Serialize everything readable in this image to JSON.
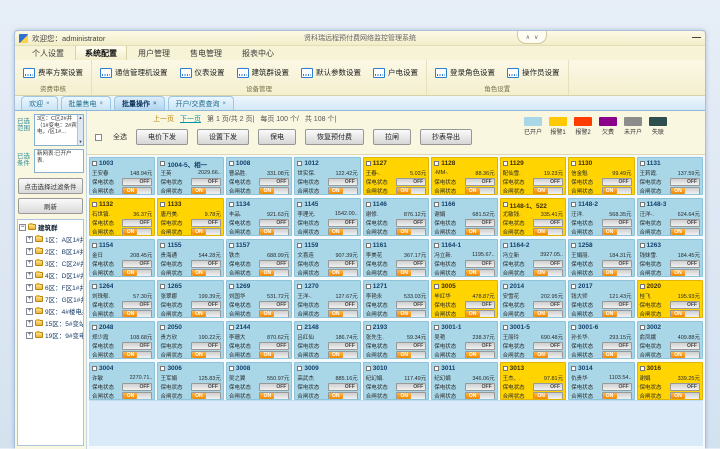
{
  "window": {
    "welcome": "欢迎您：administrator",
    "title": "贤科瑞远程预付费网络监控管理系统",
    "minimize_glyph": "—",
    "collapse_up": "∧",
    "collapse_down": "∨"
  },
  "ribbon_tabs": [
    {
      "label": "个人设置"
    },
    {
      "label": "系统配置",
      "state": "active"
    },
    {
      "label": "用户管理"
    },
    {
      "label": "售电管理"
    },
    {
      "label": "报表中心"
    }
  ],
  "ribbon": {
    "group1": {
      "label": "资费审核",
      "buttons": [
        {
          "label": "费率方案设置"
        }
      ]
    },
    "group2": {
      "label": "设备管理",
      "buttons": [
        {
          "label": "通信管理机设置"
        },
        {
          "label": "仪表设置"
        },
        {
          "label": "建筑群设置"
        },
        {
          "label": "默认参数设置"
        },
        {
          "label": "户电设置"
        }
      ]
    },
    "group3": {
      "label": "角色设置",
      "buttons": [
        {
          "label": "登录角色设置"
        },
        {
          "label": "操作员设置"
        }
      ]
    }
  },
  "doc_tabs": [
    {
      "label": "欢迎"
    },
    {
      "label": "批量售电"
    },
    {
      "label": "批量操作",
      "state": "active"
    },
    {
      "label": "开户/交费查询"
    }
  ],
  "sidebar": {
    "range_label": "已选范围",
    "range_text": "3区：C区2#井（1#变电：2#宾电，/区1#…",
    "cond_label": "已选条件",
    "cond_text": "新网表:已开户表.",
    "filter_button": "点击选择过滤条件",
    "refresh_button": "刷新",
    "tree_root": "建筑群",
    "tree": [
      {
        "label": "1区：A区1#井"
      },
      {
        "label": "2区：B区1#井（宾"
      },
      {
        "label": "3区：C区2#井（1#"
      },
      {
        "label": "4区：D区1#井（4#"
      },
      {
        "label": "6区：F区1#井（3#"
      },
      {
        "label": "7区：G区1#井"
      },
      {
        "label": "9区：4#楼电井（"
      },
      {
        "label": "15区：5#变站（3#"
      },
      {
        "label": "19区：9#变电站（"
      }
    ]
  },
  "toolbar": {
    "select_all": "全选",
    "pagination": {
      "prev": "上一页",
      "next": "下一页",
      "page_info": "第 1 页/共 2 页|",
      "per_page": "每页 100 个/",
      "total": "共 108 个|"
    },
    "buttons": [
      {
        "label": "电价下发"
      },
      {
        "label": "设置下发"
      },
      {
        "label": "保电"
      },
      {
        "label": "恢复预付费"
      },
      {
        "label": "拉闸"
      },
      {
        "label": "抄表导出"
      }
    ]
  },
  "legend": [
    {
      "label": "已开户",
      "color": "#a9d7e8"
    },
    {
      "label": "报警1",
      "color": "#ffc800"
    },
    {
      "label": "报警2",
      "color": "#ff3c00"
    },
    {
      "label": "欠费",
      "color": "#8b008b"
    },
    {
      "label": "未开户",
      "color": "#8c8c8c"
    },
    {
      "label": "失联",
      "color": "#2f4f4f"
    }
  ],
  "labels": {
    "baodian": "保电状态",
    "hezha": "合闸状态",
    "off": "OFF",
    "on": "ON"
  },
  "grid": {
    "cards": [
      {
        "room": "1003",
        "name": "王安春",
        "amount": "148.94元",
        "status": "blue"
      },
      {
        "room": "1004-5、相一",
        "name": "王英",
        "amount": "2029.66..",
        "status": "blue"
      },
      {
        "room": "1008",
        "name": "曹品胜.",
        "amount": "331.08元",
        "status": "blue"
      },
      {
        "room": "1012",
        "name": "世实保.",
        "amount": "122.42元",
        "status": "blue"
      },
      {
        "room": "1127",
        "name": "王春-.",
        "amount": "5.03元",
        "status": "yellow"
      },
      {
        "room": "1128",
        "name": "-MM-.",
        "amount": "88.36元",
        "status": "yellow"
      },
      {
        "room": "1129",
        "name": "配仙雪.",
        "amount": "19.23元",
        "status": "yellow"
      },
      {
        "room": "1130",
        "name": "信金魁",
        "amount": "99.49元",
        "status": "yellow"
      },
      {
        "room": "1131",
        "name": "王莉霞.",
        "amount": "137.59元",
        "status": "blue"
      },
      {
        "room": "1132",
        "name": "石世镇.",
        "amount": "36.37元",
        "status": "yellow"
      },
      {
        "room": "1133",
        "name": "唐丹美.",
        "amount": "9.78元",
        "status": "yellow"
      },
      {
        "room": "1134",
        "name": "丰品.",
        "amount": "921.63元",
        "status": "blue"
      },
      {
        "room": "1145",
        "name": "李理光.",
        "amount": "1542.00..",
        "status": "blue"
      },
      {
        "room": "1146",
        "name": "谢修.",
        "amount": "876.12元",
        "status": "blue"
      },
      {
        "room": "1166",
        "name": "谢娟",
        "amount": "681.52元",
        "status": "blue"
      },
      {
        "room": "1148-1、522",
        "name": "尤敏钱.",
        "amount": "335.41元",
        "status": "yellow"
      },
      {
        "room": "1148-2",
        "name": "汪洋.",
        "amount": "568.35元",
        "status": "blue"
      },
      {
        "room": "1148-3",
        "name": "汪洋-.",
        "amount": "624.64元",
        "status": "blue"
      },
      {
        "room": "1154",
        "name": "金日",
        "amount": "208.45元",
        "status": "blue"
      },
      {
        "room": "1155",
        "name": "贵海通",
        "amount": "544.28元",
        "status": "blue"
      },
      {
        "room": "1157",
        "name": "铁杰",
        "amount": "688.99元",
        "status": "blue"
      },
      {
        "room": "1159",
        "name": "文喜连",
        "amount": "907.39元",
        "status": "blue"
      },
      {
        "room": "1161",
        "name": "李美花",
        "amount": "367.17元",
        "status": "blue"
      },
      {
        "room": "1164-1",
        "name": "冯立新.",
        "amount": "1195.67..",
        "status": "blue"
      },
      {
        "room": "1164-2",
        "name": "冯立新",
        "amount": "3927.05..",
        "status": "blue"
      },
      {
        "room": "1258",
        "name": "王娟丽.",
        "amount": "184.31元",
        "status": "blue"
      },
      {
        "room": "1263",
        "name": "钱妹雪.",
        "amount": "184.45元",
        "status": "blue"
      },
      {
        "room": "1264",
        "name": "刘珠郁.",
        "amount": "57.30元",
        "status": "blue"
      },
      {
        "room": "1265",
        "name": "张翠娜",
        "amount": "199.39元",
        "status": "blue"
      },
      {
        "room": "1269",
        "name": "刘国华",
        "amount": "531.72元",
        "status": "blue"
      },
      {
        "room": "1270",
        "name": "王洋-.",
        "amount": "127.67元",
        "status": "blue"
      },
      {
        "room": "1271",
        "name": "李艳永",
        "amount": "533.03元",
        "status": "blue"
      },
      {
        "room": "3005",
        "name": "毕红华",
        "amount": "478.87元",
        "status": "yellow"
      },
      {
        "room": "2014",
        "name": "安雪花",
        "amount": "202.95元",
        "status": "blue"
      },
      {
        "room": "2017",
        "name": "钱大师",
        "amount": "121.43元",
        "status": "blue"
      },
      {
        "room": "2020",
        "name": "桂飞",
        "amount": "195.93元",
        "status": "yellow"
      },
      {
        "room": "2048",
        "name": "郑少霞",
        "amount": "108.68元",
        "status": "blue"
      },
      {
        "room": "2050",
        "name": "贵方欣",
        "amount": "190.22元",
        "status": "blue"
      },
      {
        "room": "2144",
        "name": "李珊大",
        "amount": "870.62元",
        "status": "blue"
      },
      {
        "room": "2148",
        "name": "吕红仙",
        "amount": "186.74元",
        "status": "blue"
      },
      {
        "room": "2193",
        "name": "张先生.",
        "amount": "59.34元",
        "status": "blue"
      },
      {
        "room": "3001-1",
        "name": "吴艳",
        "amount": "238.37元",
        "status": "blue"
      },
      {
        "room": "3001-5",
        "name": "王丽玲",
        "amount": "690.48元",
        "status": "blue"
      },
      {
        "room": "3001-6",
        "name": "孙长华.",
        "amount": "293.15元",
        "status": "blue"
      },
      {
        "room": "3002",
        "name": "俞凤娥",
        "amount": "409.88元",
        "status": "blue"
      },
      {
        "room": "3004",
        "name": "许敏",
        "amount": "2270.71..",
        "status": "blue"
      },
      {
        "room": "3006",
        "name": "王军娟",
        "amount": "125.83元",
        "status": "blue"
      },
      {
        "room": "3008",
        "name": "吴之翼",
        "amount": "550.97元",
        "status": "blue"
      },
      {
        "room": "3009",
        "name": "高武杰",
        "amount": "885.16元",
        "status": "blue"
      },
      {
        "room": "3010",
        "name": "纪幻娟.",
        "amount": "117.49元",
        "status": "blue"
      },
      {
        "room": "3011",
        "name": "纪幻娟",
        "amount": "346.06元",
        "status": "blue"
      },
      {
        "room": "3013",
        "name": "王杰、.",
        "amount": "97.81元",
        "status": "yellow"
      },
      {
        "room": "3014",
        "name": "仇贵华",
        "amount": "1103.54..",
        "status": "blue"
      },
      {
        "room": "3016",
        "name": "谢娟",
        "amount": "339.25元",
        "status": "yellow"
      }
    ]
  }
}
